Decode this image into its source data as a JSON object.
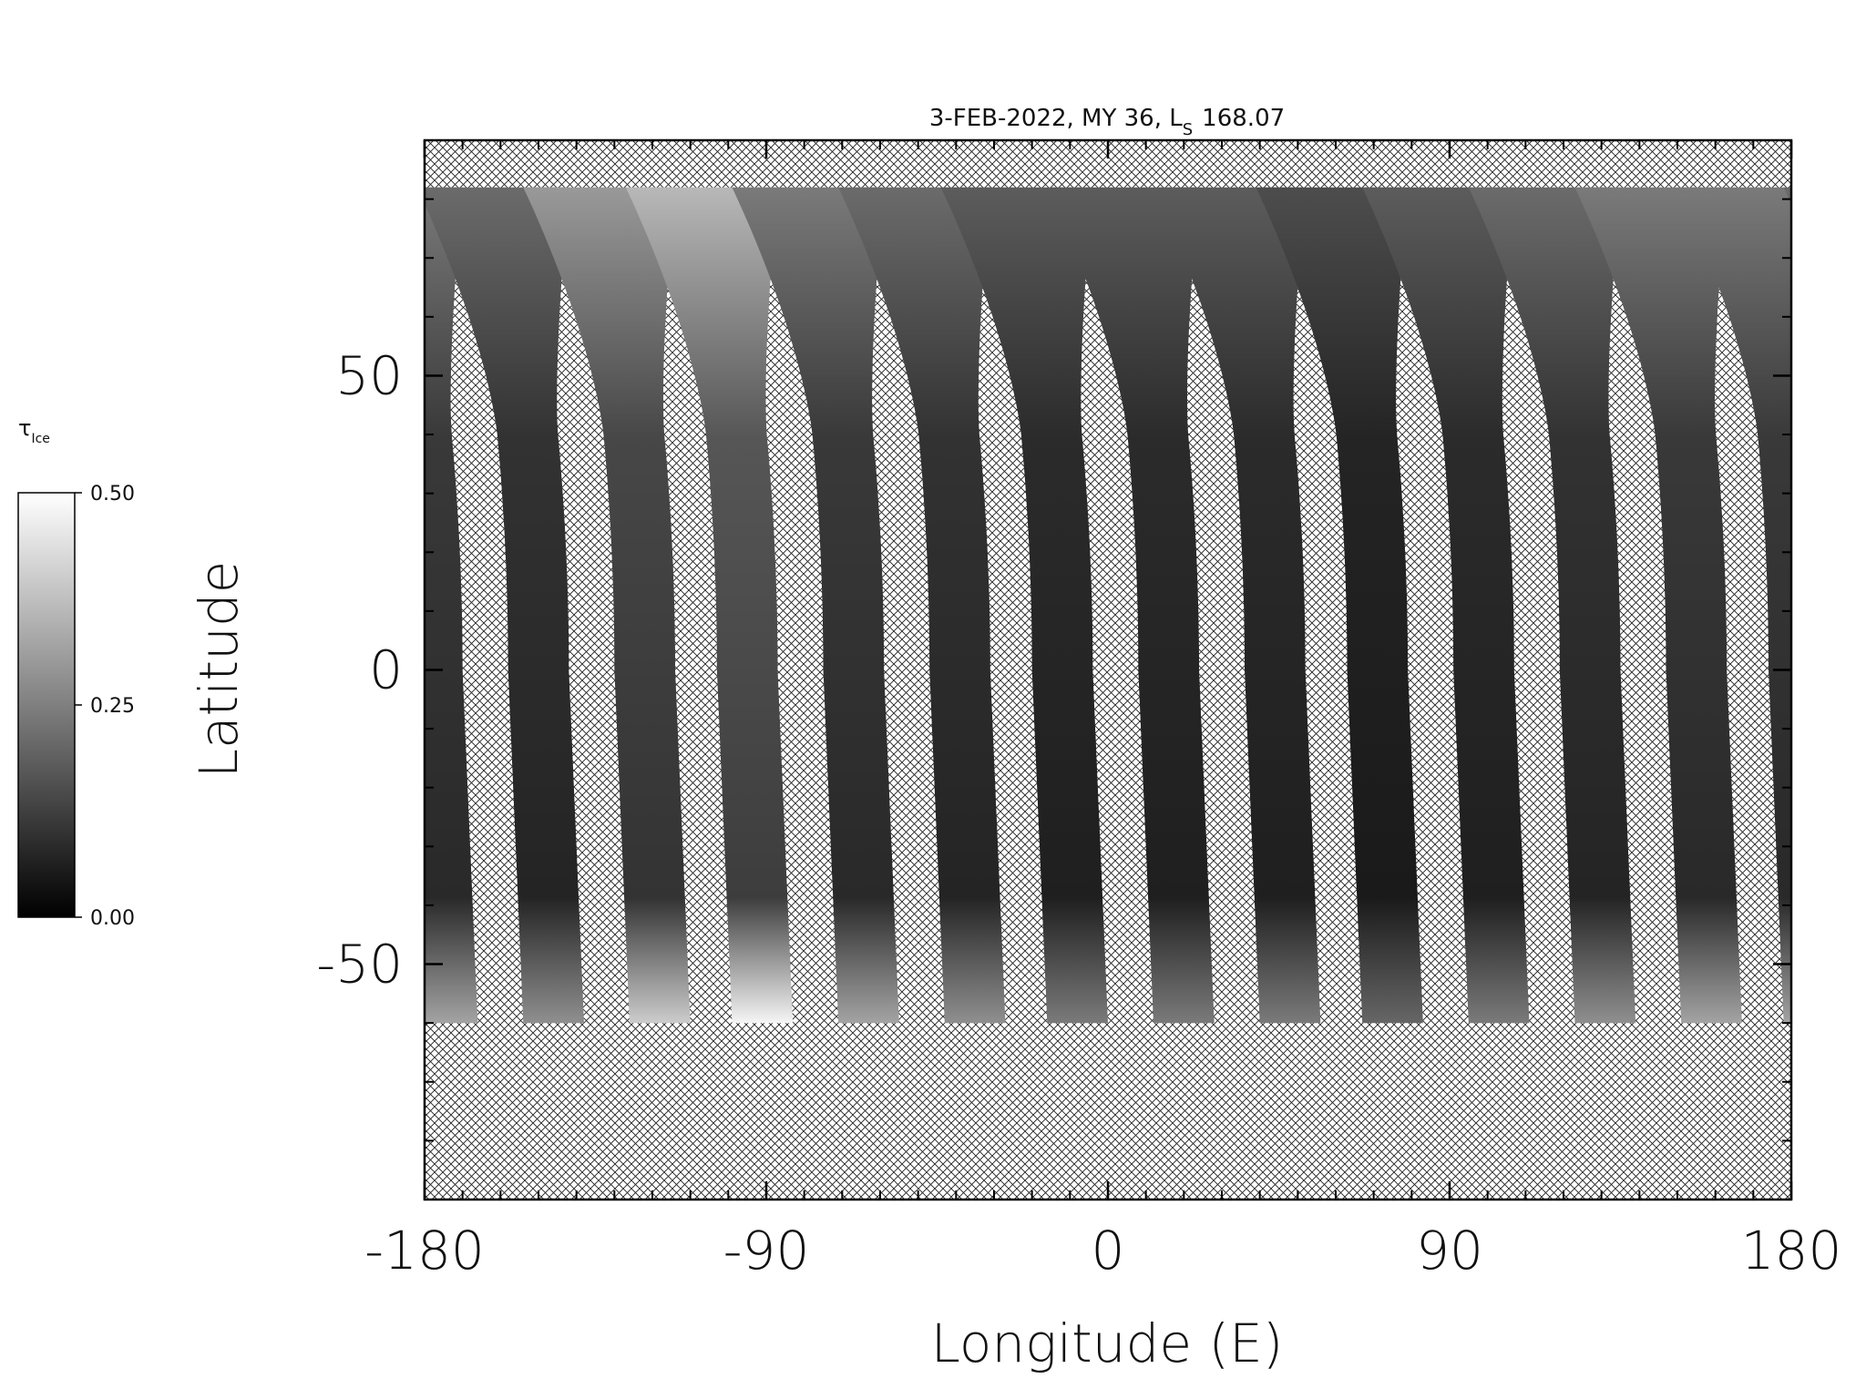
{
  "chart_data": {
    "type": "swath-map",
    "title": {
      "text": "3-FEB-2022, MY 36,  L",
      "sub": "S",
      "value": "168.07"
    },
    "x_label": "Longitude (E)",
    "y_label": "Latitude",
    "xlim": [
      -180,
      180
    ],
    "ylim": [
      -90,
      90
    ],
    "xticks": [
      -180,
      -90,
      0,
      90,
      180
    ],
    "yticks": [
      -50,
      0,
      50
    ],
    "x_minor_ticks": [
      -170,
      -160,
      -150,
      -140,
      -130,
      -120,
      -110,
      -100,
      -80,
      -70,
      -60,
      -50,
      -40,
      -30,
      -20,
      -10,
      10,
      20,
      30,
      40,
      50,
      60,
      70,
      80,
      100,
      110,
      120,
      130,
      140,
      150,
      160,
      170
    ],
    "y_minor_ticks": [
      -80,
      -70,
      -60,
      -40,
      -30,
      -20,
      -10,
      10,
      20,
      30,
      40,
      60,
      70,
      80
    ],
    "colorbar": {
      "label": {
        "symbol": "τ",
        "sub": "Ice"
      },
      "clim": [
        0,
        0.5
      ],
      "ticks": [
        {
          "value": 0,
          "label": "0.00"
        },
        {
          "value": 0.25,
          "label": "0.25"
        },
        {
          "value": 0.5,
          "label": "0.50"
        }
      ]
    },
    "coverage_lat": [
      -60,
      82
    ],
    "swaths": [
      {
        "lon": -178,
        "tau": 0.08
      },
      {
        "lon": -150,
        "tau": 0.07
      },
      {
        "lon": -122,
        "tau": 0.1
      },
      {
        "lon": -95,
        "tau": 0.12
      },
      {
        "lon": -67,
        "tau": 0.08
      },
      {
        "lon": -39,
        "tau": 0.07
      },
      {
        "lon": -12,
        "tau": 0.06
      },
      {
        "lon": 16,
        "tau": 0.06
      },
      {
        "lon": 44,
        "tau": 0.06
      },
      {
        "lon": 71,
        "tau": 0.05
      },
      {
        "lon": 99,
        "tau": 0.06
      },
      {
        "lon": 127,
        "tau": 0.07
      },
      {
        "lon": 155,
        "tau": 0.08
      }
    ]
  }
}
